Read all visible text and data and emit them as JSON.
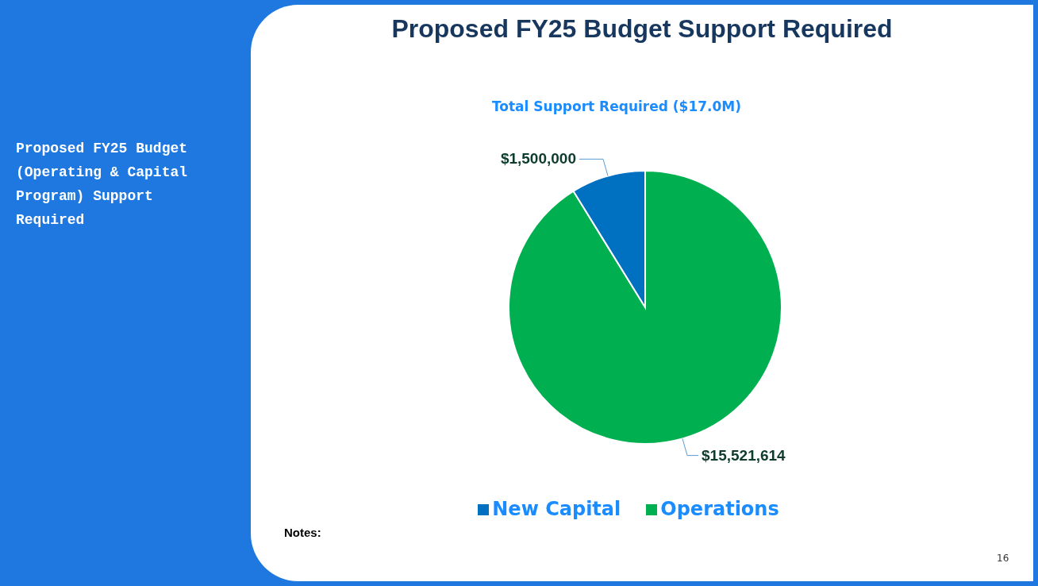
{
  "chart_data": {
    "type": "pie",
    "title": "Proposed FY25 Budget Support Required",
    "subtitle": "Total Support Required ($17.0M)",
    "categories": [
      "Operations",
      "New Capital"
    ],
    "values": [
      15521614,
      1500000
    ],
    "colors": [
      "#00b050",
      "#0070c0"
    ],
    "value_labels": [
      "$15,521,614",
      "$1,500,000"
    ],
    "legend": "bottom",
    "annotations": [
      "Proposed FY25 Budget (Operating & Capital Program) Support Required",
      "Notes:",
      "16"
    ]
  }
}
